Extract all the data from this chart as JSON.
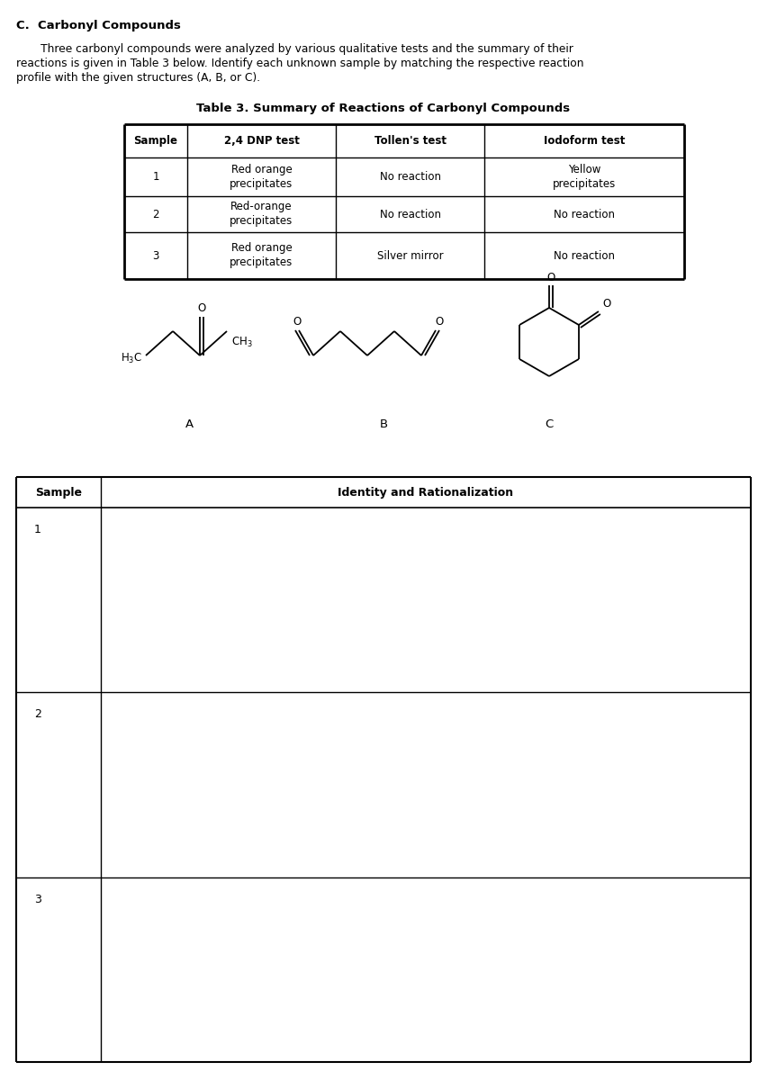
{
  "title_section": "C.  Carbonyl Compounds",
  "para_line1": "       Three carbonyl compounds were analyzed by various qualitative tests and the summary of their",
  "para_line2": "reactions is given in Table 3 below. Identify each unknown sample by matching the respective reaction",
  "para_line3": "profile with the given structures (A, B, or C).",
  "table1_title": "Table 3. Summary of Reactions of Carbonyl Compounds",
  "table1_headers": [
    "Sample",
    "2,4 DNP test",
    "Tollen's test",
    "Iodoform test"
  ],
  "table1_rows": [
    [
      "1",
      "Red orange\nprecipitates",
      "No reaction",
      "Yellow\nprecipitates"
    ],
    [
      "2",
      "Red-orange\nprecipitates",
      "No reaction",
      "No reaction"
    ],
    [
      "3",
      "Red orange\nprecipitates",
      "Silver mirror",
      "No reaction"
    ]
  ],
  "compound_labels": [
    "A",
    "B",
    "C"
  ],
  "table2_headers": [
    "Sample",
    "Identity and Rationalization"
  ],
  "table2_rows": [
    "1",
    "2",
    "3"
  ],
  "bg_color": "#ffffff",
  "text_color": "#000000"
}
